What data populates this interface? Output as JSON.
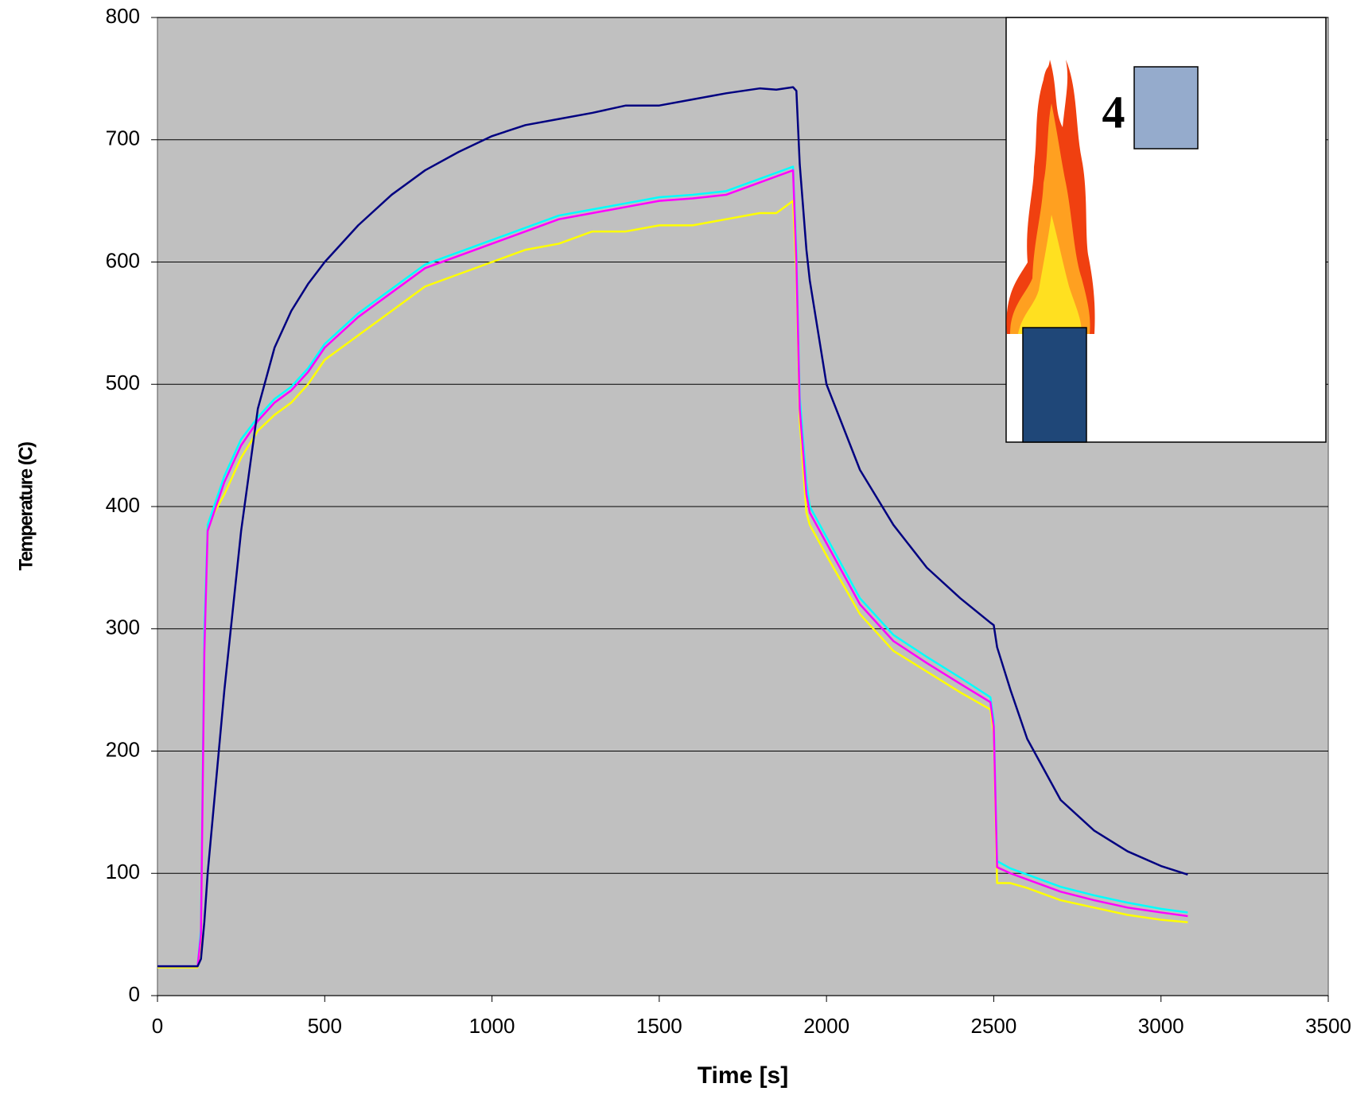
{
  "chart_data": {
    "type": "line",
    "x_label": "Time [s]",
    "y_label": "Temperature (C)",
    "annotation": "4",
    "x": [
      0,
      120,
      130,
      140,
      150,
      200,
      250,
      300,
      350,
      400,
      450,
      500,
      600,
      700,
      800,
      900,
      1000,
      1100,
      1200,
      1300,
      1400,
      1500,
      1600,
      1700,
      1800,
      1850,
      1900,
      1910,
      1920,
      1940,
      1950,
      2000,
      2100,
      2200,
      2300,
      2400,
      2490,
      2500,
      2510,
      2550,
      2600,
      2700,
      2800,
      2900,
      3000,
      3080
    ],
    "series": [
      {
        "color": "#ffff00",
        "values": [
          23,
          23,
          45,
          300,
          385,
          410,
          440,
          462,
          475,
          485,
          500,
          520,
          540,
          560,
          580,
          590,
          600,
          610,
          615,
          625,
          625,
          630,
          630,
          635,
          640,
          640,
          650,
          590,
          470,
          395,
          385,
          360,
          312,
          282,
          265,
          248,
          234,
          215,
          92,
          92,
          88,
          78,
          72,
          66,
          62,
          60
        ]
      },
      {
        "color": "#00ffff",
        "values": [
          24,
          24,
          55,
          300,
          385,
          425,
          455,
          473,
          488,
          498,
          513,
          533,
          558,
          578,
          598,
          608,
          618,
          628,
          638,
          643,
          648,
          653,
          655,
          658,
          668,
          673,
          678,
          610,
          490,
          420,
          400,
          375,
          325,
          295,
          277,
          260,
          244,
          225,
          110,
          104,
          99,
          89,
          82,
          76,
          71,
          68
        ]
      },
      {
        "color": "#ff00ff",
        "values": [
          24,
          24,
          50,
          280,
          380,
          420,
          450,
          470,
          485,
          495,
          510,
          530,
          555,
          575,
          595,
          605,
          615,
          625,
          635,
          640,
          645,
          650,
          652,
          655,
          665,
          670,
          675,
          600,
          480,
          410,
          395,
          370,
          320,
          290,
          272,
          255,
          240,
          220,
          105,
          100,
          95,
          85,
          78,
          72,
          68,
          65
        ]
      },
      {
        "color": "#000080",
        "values": [
          24,
          24,
          30,
          60,
          100,
          250,
          380,
          480,
          530,
          560,
          582,
          600,
          630,
          655,
          675,
          690,
          703,
          712,
          717,
          722,
          728,
          728,
          733,
          738,
          742,
          741,
          743,
          740,
          680,
          610,
          585,
          500,
          430,
          385,
          350,
          325,
          305,
          303,
          285,
          250,
          210,
          160,
          135,
          118,
          106,
          99
        ]
      }
    ],
    "xlim": [
      0,
      3500
    ],
    "xticks": [
      0,
      500,
      1000,
      1500,
      2000,
      2500,
      3000,
      3500
    ],
    "ylim": [
      0,
      800
    ],
    "yticks": [
      0,
      100,
      200,
      300,
      400,
      500,
      600,
      700,
      800
    ],
    "grid": true,
    "background": "#c0c0c0"
  }
}
